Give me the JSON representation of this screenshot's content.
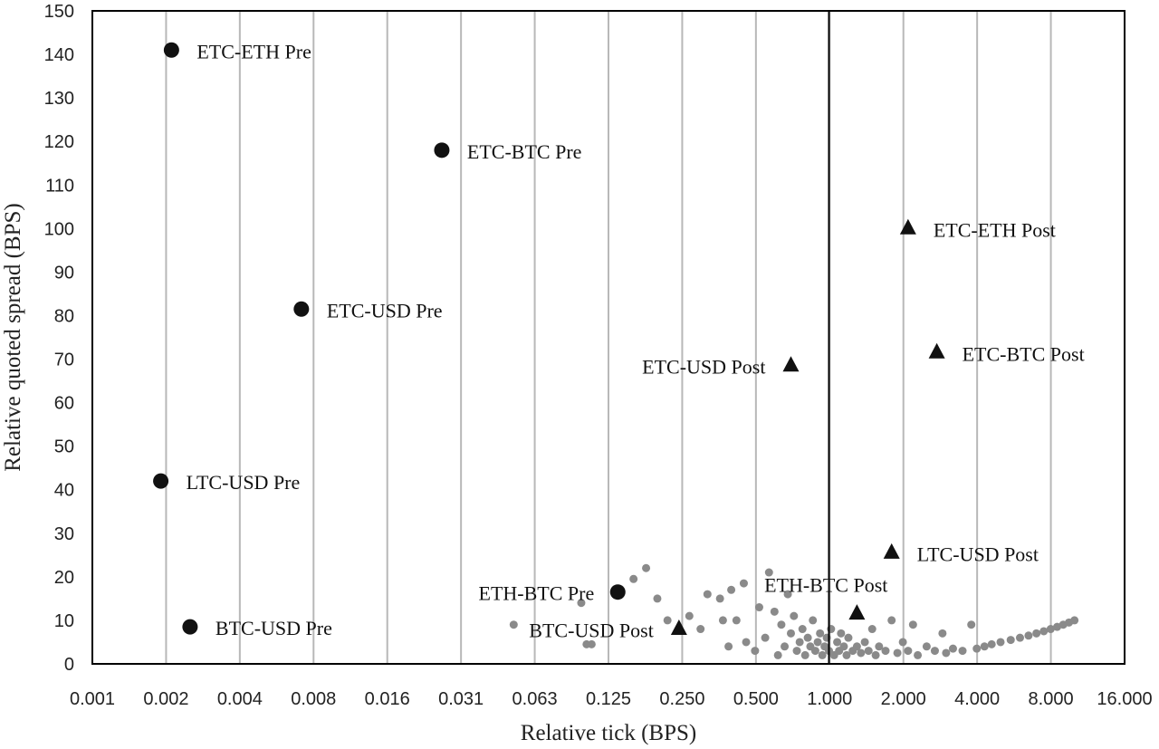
{
  "chart_data": {
    "type": "scatter",
    "title": "",
    "xlabel": "Relative tick (BPS)",
    "ylabel": "Relative quoted spread (BPS)",
    "x_scale": "log2",
    "xlim": [
      0.001,
      16.0
    ],
    "ylim": [
      0,
      150
    ],
    "x_ticks": [
      0.001,
      0.002,
      0.004,
      0.008,
      0.016,
      0.031,
      0.063,
      0.125,
      0.25,
      0.5,
      1.0,
      2.0,
      4.0,
      8.0,
      16.0
    ],
    "x_tick_labels": [
      "0.001",
      "0.002",
      "0.004",
      "0.008",
      "0.016",
      "0.031",
      "0.063",
      "0.125",
      "0.250",
      "0.500",
      "1.000",
      "2.000",
      "4.000",
      "8.000",
      "16.000"
    ],
    "y_ticks": [
      0,
      10,
      20,
      30,
      40,
      50,
      60,
      70,
      80,
      90,
      100,
      110,
      120,
      130,
      140,
      150
    ],
    "grid": "vertical",
    "reference_line_x": 1.0,
    "colors": {
      "labeled": "#111111",
      "background_points": "#8a8a8a",
      "grid": "#b8b8b8"
    },
    "series": [
      {
        "marker": "circle",
        "points": [
          {
            "label": "ETC-ETH Pre",
            "x": 0.0021,
            "y": 141
          },
          {
            "label": "ETC-BTC Pre",
            "x": 0.0265,
            "y": 118
          },
          {
            "label": "ETC-USD Pre",
            "x": 0.0071,
            "y": 81.5
          },
          {
            "label": "LTC-USD Pre",
            "x": 0.0019,
            "y": 42
          },
          {
            "label": "BTC-USD Pre",
            "x": 0.0025,
            "y": 8.5
          },
          {
            "label": "ETH-BTC Pre",
            "x": 0.138,
            "y": 16.5
          }
        ]
      },
      {
        "marker": "triangle",
        "points": [
          {
            "label": "ETC-ETH Post",
            "x": 2.1,
            "y": 100
          },
          {
            "label": "ETC-BTC Post",
            "x": 2.75,
            "y": 71.5
          },
          {
            "label": "ETC-USD Post",
            "x": 0.7,
            "y": 68.5
          },
          {
            "label": "LTC-USD Post",
            "x": 1.8,
            "y": 25.5
          },
          {
            "label": "ETH-BTC Post",
            "x": 1.3,
            "y": 11.5
          },
          {
            "label": "BTC-USD Post",
            "x": 0.245,
            "y": 8
          }
        ]
      },
      {
        "marker": "small-circle",
        "points": [
          {
            "x": 0.052,
            "y": 9
          },
          {
            "x": 0.098,
            "y": 14
          },
          {
            "x": 0.103,
            "y": 4.5
          },
          {
            "x": 0.108,
            "y": 4.5
          },
          {
            "x": 0.16,
            "y": 19.5
          },
          {
            "x": 0.18,
            "y": 22
          },
          {
            "x": 0.2,
            "y": 15
          },
          {
            "x": 0.22,
            "y": 10
          },
          {
            "x": 0.27,
            "y": 11
          },
          {
            "x": 0.3,
            "y": 8
          },
          {
            "x": 0.32,
            "y": 16
          },
          {
            "x": 0.36,
            "y": 15
          },
          {
            "x": 0.37,
            "y": 10
          },
          {
            "x": 0.39,
            "y": 4
          },
          {
            "x": 0.4,
            "y": 17
          },
          {
            "x": 0.42,
            "y": 10
          },
          {
            "x": 0.45,
            "y": 18.5
          },
          {
            "x": 0.46,
            "y": 5
          },
          {
            "x": 0.5,
            "y": 3
          },
          {
            "x": 0.52,
            "y": 13
          },
          {
            "x": 0.55,
            "y": 6
          },
          {
            "x": 0.57,
            "y": 21
          },
          {
            "x": 0.6,
            "y": 12
          },
          {
            "x": 0.62,
            "y": 2
          },
          {
            "x": 0.64,
            "y": 9
          },
          {
            "x": 0.66,
            "y": 4
          },
          {
            "x": 0.68,
            "y": 16
          },
          {
            "x": 0.7,
            "y": 7
          },
          {
            "x": 0.72,
            "y": 11
          },
          {
            "x": 0.74,
            "y": 3
          },
          {
            "x": 0.76,
            "y": 5
          },
          {
            "x": 0.78,
            "y": 8
          },
          {
            "x": 0.8,
            "y": 2
          },
          {
            "x": 0.82,
            "y": 6
          },
          {
            "x": 0.84,
            "y": 4
          },
          {
            "x": 0.86,
            "y": 10
          },
          {
            "x": 0.88,
            "y": 3
          },
          {
            "x": 0.9,
            "y": 5
          },
          {
            "x": 0.92,
            "y": 7
          },
          {
            "x": 0.94,
            "y": 2
          },
          {
            "x": 0.96,
            "y": 4
          },
          {
            "x": 0.98,
            "y": 6
          },
          {
            "x": 1.0,
            "y": 3
          },
          {
            "x": 1.02,
            "y": 8
          },
          {
            "x": 1.05,
            "y": 2
          },
          {
            "x": 1.08,
            "y": 5
          },
          {
            "x": 1.1,
            "y": 3
          },
          {
            "x": 1.12,
            "y": 7
          },
          {
            "x": 1.15,
            "y": 4
          },
          {
            "x": 1.18,
            "y": 2
          },
          {
            "x": 1.2,
            "y": 6
          },
          {
            "x": 1.25,
            "y": 3
          },
          {
            "x": 1.3,
            "y": 4
          },
          {
            "x": 1.35,
            "y": 2.5
          },
          {
            "x": 1.4,
            "y": 5
          },
          {
            "x": 1.45,
            "y": 3
          },
          {
            "x": 1.5,
            "y": 8
          },
          {
            "x": 1.55,
            "y": 2
          },
          {
            "x": 1.6,
            "y": 4
          },
          {
            "x": 1.7,
            "y": 3
          },
          {
            "x": 1.8,
            "y": 10
          },
          {
            "x": 1.9,
            "y": 2.5
          },
          {
            "x": 2.0,
            "y": 5
          },
          {
            "x": 2.1,
            "y": 3
          },
          {
            "x": 2.2,
            "y": 9
          },
          {
            "x": 2.3,
            "y": 2
          },
          {
            "x": 2.5,
            "y": 4
          },
          {
            "x": 2.7,
            "y": 3
          },
          {
            "x": 2.9,
            "y": 7
          },
          {
            "x": 3.0,
            "y": 2.5
          },
          {
            "x": 3.2,
            "y": 3.5
          },
          {
            "x": 3.5,
            "y": 3
          },
          {
            "x": 3.8,
            "y": 9
          },
          {
            "x": 4.0,
            "y": 3.5
          },
          {
            "x": 4.3,
            "y": 4
          },
          {
            "x": 4.6,
            "y": 4.5
          },
          {
            "x": 5.0,
            "y": 5
          },
          {
            "x": 5.5,
            "y": 5.5
          },
          {
            "x": 6.0,
            "y": 6
          },
          {
            "x": 6.5,
            "y": 6.5
          },
          {
            "x": 7.0,
            "y": 7
          },
          {
            "x": 7.5,
            "y": 7.5
          },
          {
            "x": 8.0,
            "y": 8
          },
          {
            "x": 8.5,
            "y": 8.5
          },
          {
            "x": 9.0,
            "y": 9
          },
          {
            "x": 9.5,
            "y": 9.5
          },
          {
            "x": 10.0,
            "y": 10
          }
        ]
      }
    ]
  }
}
